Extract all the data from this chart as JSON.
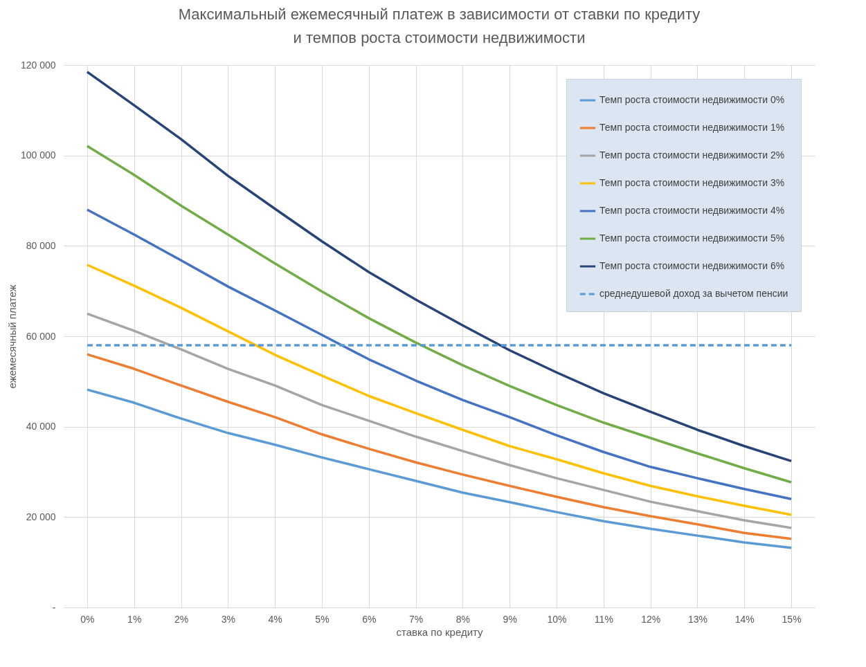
{
  "chart_data": {
    "type": "line",
    "title": [
      "Максимальный ежемесячный платеж в зависимости от ставки по кредиту",
      "и темпов роста стоимости недвижимости"
    ],
    "xlabel": "ставка по кредиту",
    "ylabel": "ежемесячный платеж",
    "categories": [
      "0%",
      "1%",
      "2%",
      "3%",
      "4%",
      "5%",
      "6%",
      "7%",
      "8%",
      "9%",
      "10%",
      "11%",
      "12%",
      "13%",
      "14%",
      "15%"
    ],
    "ylim": [
      0,
      120000
    ],
    "yticks": [
      {
        "value": 0,
        "label": "-"
      },
      {
        "value": 20000,
        "label": "20 000"
      },
      {
        "value": 40000,
        "label": "40 000"
      },
      {
        "value": 60000,
        "label": "60 000"
      },
      {
        "value": 80000,
        "label": "80 000"
      },
      {
        "value": 100000,
        "label": "100 000"
      },
      {
        "value": 120000,
        "label": "120 000"
      }
    ],
    "grid": true,
    "legend": "top right",
    "marker": "none",
    "series": [
      {
        "name": "Темп роста стоимости недвижимости 0%",
        "color": "#5b9bd5",
        "values": [
          48200,
          45300,
          41800,
          38600,
          36000,
          33200,
          30600,
          28000,
          25400,
          23300,
          21100,
          19100,
          17400,
          15900,
          14400,
          13200
        ]
      },
      {
        "name": "Темп роста стоимости недвижимости 1%",
        "color": "#ed7d31",
        "values": [
          56000,
          52800,
          49100,
          45500,
          42100,
          38300,
          35100,
          32100,
          29400,
          26900,
          24500,
          22200,
          20200,
          18400,
          16500,
          15200
        ]
      },
      {
        "name": "Темп роста стоимости недвижимости 2%",
        "color": "#a5a5a5",
        "values": [
          65000,
          61200,
          57100,
          52800,
          49100,
          44800,
          41300,
          37800,
          34600,
          31500,
          28600,
          26000,
          23400,
          21300,
          19300,
          17600
        ]
      },
      {
        "name": "Темп роста стоимости недвижимости 3%",
        "color": "#ffc000",
        "values": [
          75800,
          71200,
          66300,
          61100,
          55900,
          51300,
          46800,
          43000,
          39300,
          35700,
          32800,
          29700,
          26900,
          24600,
          22500,
          20500
        ]
      },
      {
        "name": "Темп роста стоимости недвижимости 4%",
        "color": "#4472c4",
        "values": [
          88000,
          82500,
          76800,
          71000,
          65700,
          60300,
          54900,
          50200,
          45900,
          42100,
          38100,
          34400,
          31100,
          28600,
          26200,
          24000
        ]
      },
      {
        "name": "Темп роста стоимости недвижимости 5%",
        "color": "#70ad47",
        "values": [
          102100,
          95700,
          88900,
          82500,
          76100,
          69900,
          64000,
          58600,
          53600,
          49000,
          44800,
          40900,
          37500,
          34100,
          30800,
          27700
        ]
      },
      {
        "name": "Темп роста стоимости недвижимости 6%",
        "color": "#264478",
        "values": [
          118500,
          111100,
          103600,
          95500,
          88200,
          81000,
          74200,
          68100,
          62400,
          56900,
          52000,
          47400,
          43300,
          39300,
          35700,
          32400
        ]
      },
      {
        "name": "среднедушевой доход за вычетом пенсии",
        "color": "#5b9bd5",
        "line_style": "dashed",
        "values": [
          58000,
          58000,
          58000,
          58000,
          58000,
          58000,
          58000,
          58000,
          58000,
          58000,
          58000,
          58000,
          58000,
          58000,
          58000,
          58000
        ]
      }
    ]
  }
}
